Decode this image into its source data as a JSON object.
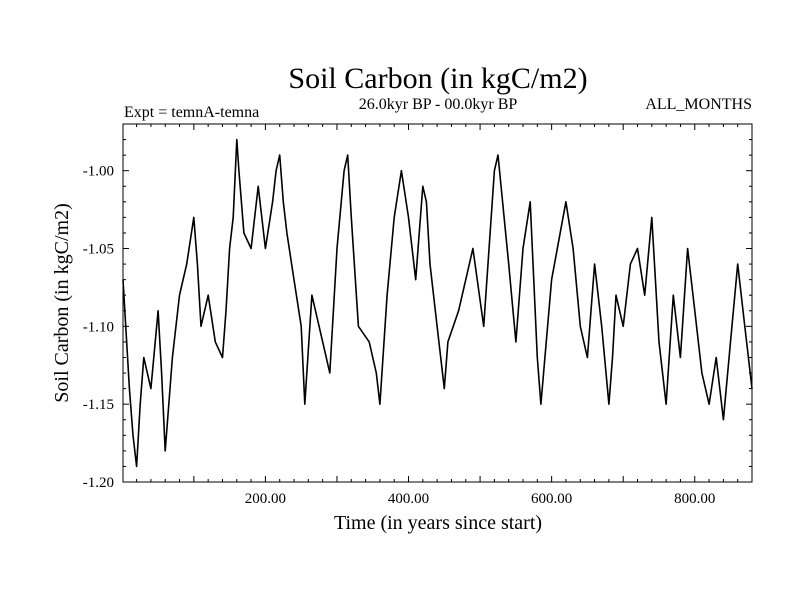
{
  "chart_data": {
    "type": "line",
    "title": "Soil Carbon (in kgC/m2)",
    "subtitle_left": "Expt = temnA-temna",
    "subtitle_center": "26.0kyr BP - 00.0kyr BP",
    "subtitle_right": "ALL_MONTHS",
    "xlabel": "Time (in years since start)",
    "ylabel": "Soil Carbon (in kgC/m2)",
    "xlim": [
      1,
      880
    ],
    "ylim": [
      -1.2,
      -0.97
    ],
    "x_ticks": [
      200,
      400,
      600,
      800
    ],
    "x_tick_labels": [
      "200.00",
      "400.00",
      "600.00",
      "800.00"
    ],
    "y_ticks": [
      -1.2,
      -1.15,
      -1.1,
      -1.05,
      -1.0
    ],
    "y_tick_labels": [
      "-1.20",
      "-1.15",
      "-1.10",
      "-1.05",
      "-1.00"
    ],
    "series": [
      {
        "name": "Soil Carbon",
        "color": "#000000",
        "x": [
          1,
          10,
          15,
          20,
          25,
          30,
          40,
          50,
          55,
          60,
          70,
          80,
          90,
          100,
          105,
          110,
          120,
          130,
          140,
          145,
          150,
          155,
          160,
          163,
          170,
          180,
          190,
          200,
          210,
          215,
          220,
          225,
          230,
          240,
          250,
          255,
          265,
          275,
          290,
          300,
          310,
          315,
          320,
          330,
          345,
          355,
          360,
          370,
          380,
          390,
          400,
          410,
          420,
          425,
          430,
          440,
          450,
          455,
          470,
          490,
          505,
          520,
          525,
          540,
          550,
          560,
          570,
          580,
          585,
          600,
          620,
          630,
          640,
          650,
          660,
          670,
          680,
          685,
          690,
          700,
          710,
          720,
          730,
          740,
          750,
          760,
          770,
          780,
          790,
          800,
          810,
          820,
          830,
          840,
          850,
          860,
          870,
          880
        ],
        "values": [
          -1.07,
          -1.14,
          -1.17,
          -1.19,
          -1.15,
          -1.12,
          -1.14,
          -1.09,
          -1.13,
          -1.18,
          -1.12,
          -1.08,
          -1.06,
          -1.03,
          -1.06,
          -1.1,
          -1.08,
          -1.11,
          -1.12,
          -1.09,
          -1.05,
          -1.03,
          -0.98,
          -1.0,
          -1.04,
          -1.05,
          -1.01,
          -1.05,
          -1.02,
          -1.0,
          -0.99,
          -1.02,
          -1.04,
          -1.07,
          -1.1,
          -1.15,
          -1.08,
          -1.1,
          -1.13,
          -1.05,
          -1.0,
          -0.99,
          -1.03,
          -1.1,
          -1.11,
          -1.13,
          -1.15,
          -1.08,
          -1.03,
          -1.0,
          -1.03,
          -1.07,
          -1.01,
          -1.02,
          -1.06,
          -1.1,
          -1.14,
          -1.11,
          -1.09,
          -1.05,
          -1.1,
          -1.0,
          -0.99,
          -1.06,
          -1.11,
          -1.05,
          -1.02,
          -1.12,
          -1.15,
          -1.07,
          -1.02,
          -1.05,
          -1.1,
          -1.12,
          -1.06,
          -1.1,
          -1.15,
          -1.12,
          -1.08,
          -1.1,
          -1.06,
          -1.05,
          -1.08,
          -1.03,
          -1.11,
          -1.15,
          -1.08,
          -1.12,
          -1.05,
          -1.09,
          -1.13,
          -1.15,
          -1.12,
          -1.16,
          -1.11,
          -1.06,
          -1.1,
          -1.14
        ]
      }
    ]
  }
}
